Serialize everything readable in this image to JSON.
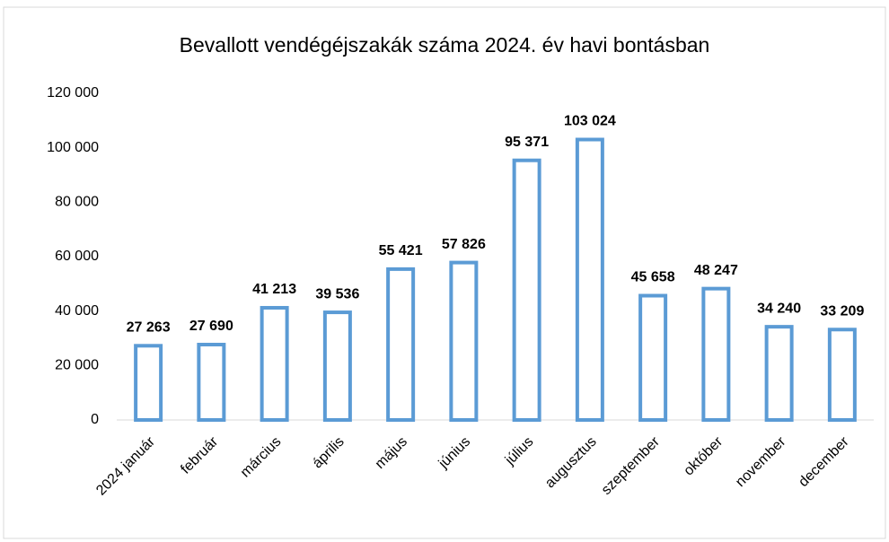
{
  "chart_data": {
    "type": "bar",
    "title": "Bevallott vendégéjszakák száma 2024. év havi bontásban",
    "categories": [
      "2024 január",
      "február",
      "március",
      "április",
      "május",
      "június",
      "július",
      "augusztus",
      "szeptember",
      "október",
      "november",
      "december"
    ],
    "values": [
      27263,
      27690,
      41213,
      39536,
      55421,
      57826,
      95371,
      103024,
      45658,
      48247,
      34240,
      33209
    ],
    "value_labels": [
      "27 263",
      "27 690",
      "41 213",
      "39 536",
      "55 421",
      "57 826",
      "95 371",
      "103 024",
      "45 658",
      "48 247",
      "34 240",
      "33 209"
    ],
    "color": "#5b9bd5",
    "ylim": [
      0,
      120000
    ],
    "yticks": [
      0,
      {
        "value": 20000,
        "label": "20 000"
      },
      {
        "value": 40000,
        "label": "40 000"
      },
      {
        "value": 60000,
        "label": "60 000"
      },
      {
        "value": 80000,
        "label": "80 000"
      },
      {
        "value": 100000,
        "label": "100 000"
      },
      {
        "value": 120000,
        "label": "120 000"
      }
    ],
    "grid": false
  }
}
